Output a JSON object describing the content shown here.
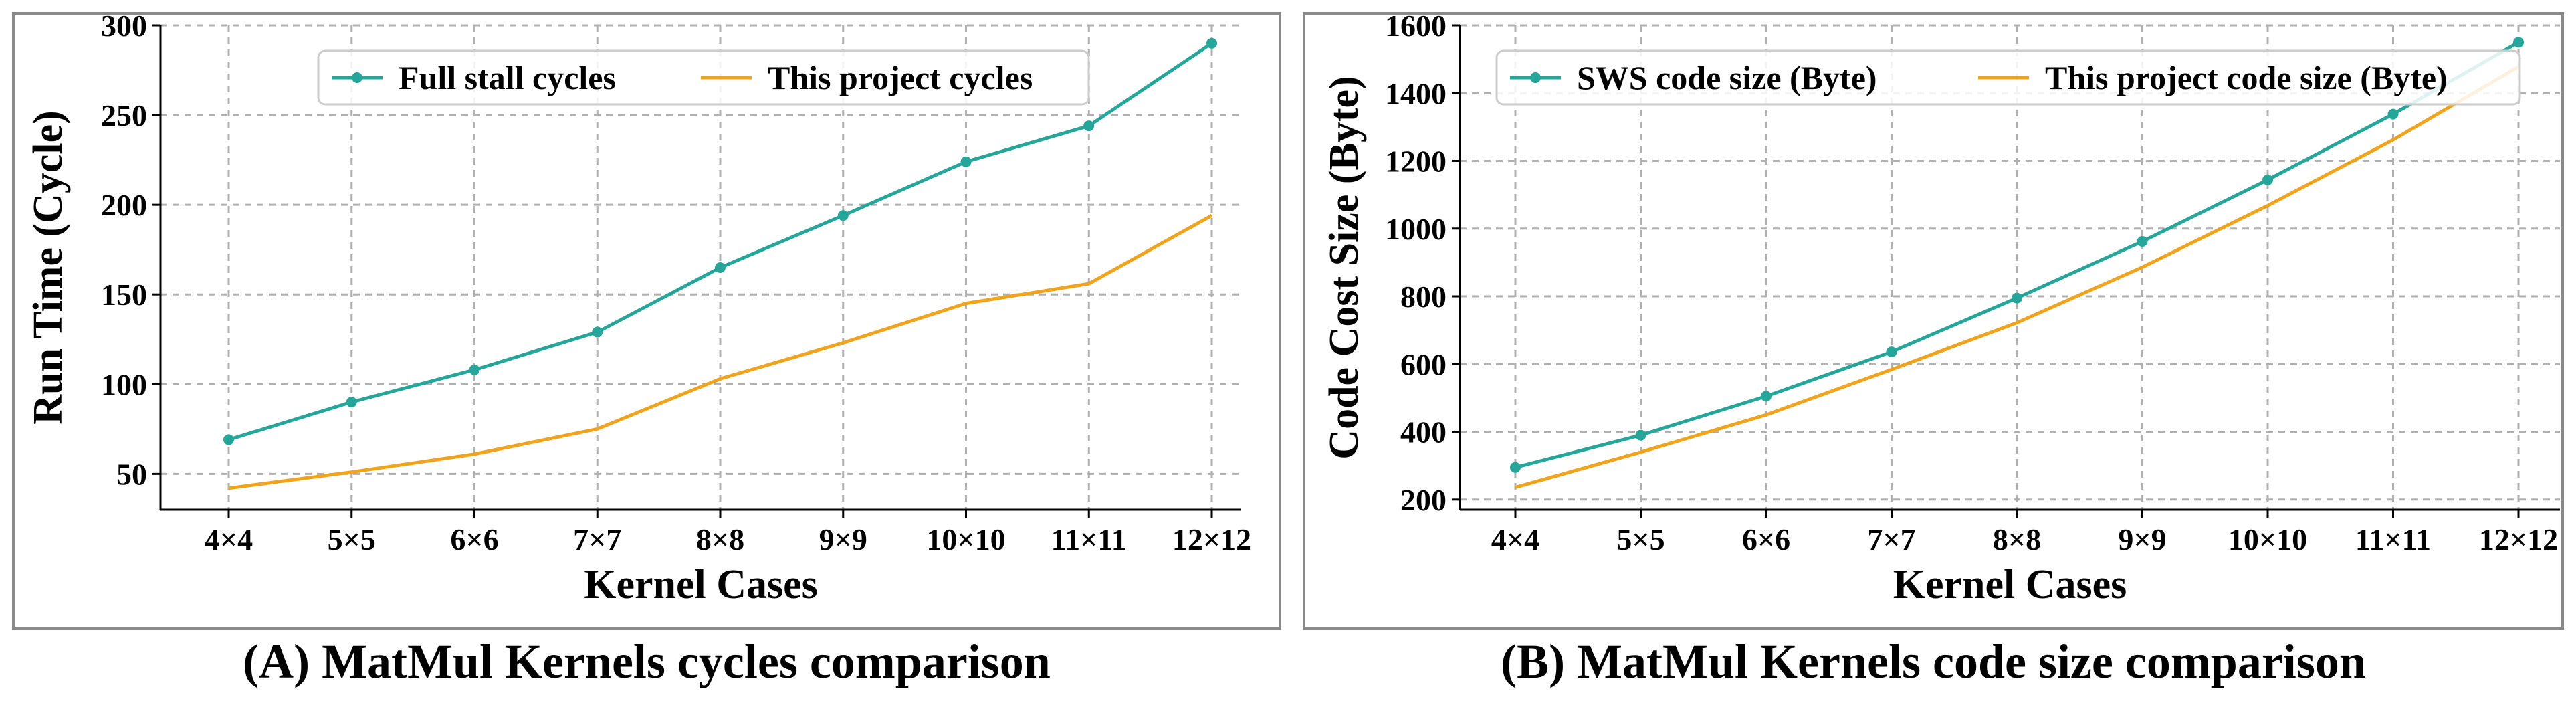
{
  "colors": {
    "series1": "#26a69a",
    "series2": "#f0a31c",
    "grid": "#b0b0b0",
    "frame": "#8a8a8a"
  },
  "chart_data": [
    {
      "type": "line",
      "categories": [
        "4×4",
        "5×5",
        "6×6",
        "7×7",
        "8×8",
        "9×9",
        "10×10",
        "11×11",
        "12×12"
      ],
      "series": [
        {
          "name": "Full stall cycles",
          "values": [
            69,
            90,
            108,
            129,
            165,
            194,
            224,
            244,
            290
          ],
          "marker": true
        },
        {
          "name": "This project cycles",
          "values": [
            42,
            51,
            61,
            75,
            103,
            123,
            145,
            156,
            194
          ],
          "marker": false
        }
      ],
      "title": "",
      "xlabel": "Kernel Cases",
      "ylabel": "Run Time (Cycle)",
      "ylim": [
        30,
        300
      ],
      "yticks": [
        50,
        100,
        150,
        200,
        250,
        300
      ],
      "grid": true,
      "legend": "top-center",
      "caption": "(A) MatMul Kernels cycles comparison"
    },
    {
      "type": "line",
      "categories": [
        "4×4",
        "5×5",
        "6×6",
        "7×7",
        "8×8",
        "9×9",
        "10×10",
        "11×11",
        "12×12"
      ],
      "series": [
        {
          "name": "SWS code size (Byte)",
          "values": [
            295,
            390,
            505,
            636,
            795,
            962,
            1144,
            1338,
            1550
          ],
          "marker": true
        },
        {
          "name": "This project code size (Byte)",
          "values": [
            236,
            340,
            450,
            584,
            722,
            886,
            1068,
            1262,
            1478
          ],
          "marker": false
        }
      ],
      "title": "",
      "xlabel": "Kernel Cases",
      "ylabel": "Code Cost Size (Byte)",
      "ylim": [
        170,
        1600
      ],
      "yticks": [
        200,
        400,
        600,
        800,
        1000,
        1200,
        1400,
        1600
      ],
      "grid": true,
      "legend": "top-center",
      "caption": "(B) MatMul Kernels code size comparison"
    }
  ]
}
